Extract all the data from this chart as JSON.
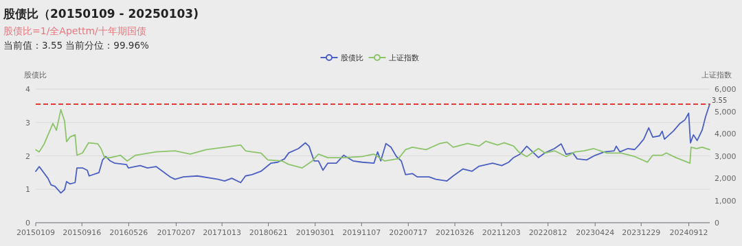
{
  "chart_data": {
    "type": "line",
    "title": "股债比（20150109 - 20250103)",
    "subtitle": "股债比=1/全Apettm/十年期国债",
    "annotations": [
      "当前值：3.55 当前分位：99.96%"
    ],
    "ylabel": "股债比",
    "y2label": "上证指数",
    "legend": "top",
    "grid": "y",
    "marker": "none",
    "line_style": "solid",
    "xlim": [
      "2015-01-09",
      "2025-01-03"
    ],
    "xticks": [
      {
        "value": "2015-01-09",
        "label": "20150109"
      },
      {
        "value": "2015-09-16",
        "label": "20150916"
      },
      {
        "value": "2016-05-26",
        "label": "20160526"
      },
      {
        "value": "2017-02-07",
        "label": "20170207"
      },
      {
        "value": "2017-10-13",
        "label": "20171013"
      },
      {
        "value": "2018-06-21",
        "label": "20180621"
      },
      {
        "value": "2019-03-01",
        "label": "20190301"
      },
      {
        "value": "2019-11-07",
        "label": "20191107"
      },
      {
        "value": "2020-07-17",
        "label": "20200717"
      },
      {
        "value": "2021-03-26",
        "label": "20210326"
      },
      {
        "value": "2021-12-03",
        "label": "20211203"
      },
      {
        "value": "2022-08-12",
        "label": "20220812"
      },
      {
        "value": "2023-04-24",
        "label": "20230424"
      },
      {
        "value": "2023-12-29",
        "label": "20231229"
      },
      {
        "value": "2024-09-12",
        "label": "20240912"
      }
    ],
    "ylim": [
      0,
      4
    ],
    "yticks": [
      0,
      1,
      2,
      3,
      4
    ],
    "y2lim": [
      0,
      6000
    ],
    "y2ticks": [
      0,
      {
        "value": 1000,
        "label": "1,000"
      },
      {
        "value": 2000,
        "label": "2,000"
      },
      {
        "value": 3000,
        "label": "3,000"
      },
      {
        "value": 4000,
        "label": "4,000"
      },
      {
        "value": 5000,
        "label": "5,000"
      },
      {
        "value": 6000,
        "label": "6,000"
      }
    ],
    "ref_lines": [
      {
        "axis": "y",
        "value": 3.55,
        "label": "3.55",
        "color": "#e53935",
        "line_style": "dashed"
      }
    ],
    "series": [
      {
        "name": "股债比",
        "color": "#4a5fc1",
        "x": [
          "2015-01-09",
          "2015-01-28",
          "2015-03-16",
          "2015-04-02",
          "2015-04-23",
          "2015-05-25",
          "2015-06-14",
          "2015-06-25",
          "2015-07-14",
          "2015-08-10",
          "2015-08-20",
          "2015-09-19",
          "2015-10-15",
          "2015-10-25",
          "2015-12-17",
          "2016-01-06",
          "2016-01-23",
          "2016-02-16",
          "2016-03-12",
          "2016-05-14",
          "2016-05-24",
          "2016-07-27",
          "2016-09-05",
          "2016-10-21",
          "2017-01-06",
          "2017-02-01",
          "2017-03-18",
          "2017-06-02",
          "2017-09-21",
          "2017-10-27",
          "2017-12-05",
          "2018-01-22",
          "2018-02-17",
          "2018-03-24",
          "2018-05-12",
          "2018-07-04",
          "2018-08-10",
          "2018-09-16",
          "2018-10-09",
          "2018-12-01",
          "2019-01-07",
          "2019-01-27",
          "2019-02-23",
          "2019-03-19",
          "2019-04-12",
          "2019-05-08",
          "2019-06-24",
          "2019-08-02",
          "2019-09-22",
          "2019-11-11",
          "2020-01-13",
          "2020-02-02",
          "2020-02-19",
          "2020-03-18",
          "2020-04-14",
          "2020-05-14",
          "2020-06-09",
          "2020-07-02",
          "2020-08-08",
          "2020-09-04",
          "2020-11-06",
          "2020-12-13",
          "2021-02-11",
          "2021-03-17",
          "2021-05-09",
          "2021-06-26",
          "2021-08-04",
          "2021-10-16",
          "2021-12-05",
          "2022-01-11",
          "2022-02-07",
          "2022-03-13",
          "2022-04-19",
          "2022-05-15",
          "2022-06-21",
          "2022-07-27",
          "2022-09-16",
          "2022-10-22",
          "2022-11-18",
          "2022-12-24",
          "2023-01-17",
          "2023-03-09",
          "2023-04-25",
          "2023-06-14",
          "2023-08-05",
          "2023-08-16",
          "2023-09-05",
          "2023-10-18",
          "2023-11-24",
          "2023-12-16",
          "2024-01-12",
          "2024-02-08",
          "2024-03-01",
          "2024-04-07",
          "2024-04-21",
          "2024-05-03",
          "2024-06-20",
          "2024-07-26",
          "2024-08-22",
          "2024-09-11",
          "2024-09-21",
          "2024-10-07",
          "2024-10-27",
          "2024-11-23",
          "2024-12-12",
          "2025-01-03"
        ],
        "values": [
          1.54,
          1.68,
          1.33,
          1.13,
          1.09,
          0.89,
          0.99,
          1.23,
          1.16,
          1.2,
          1.64,
          1.64,
          1.57,
          1.4,
          1.5,
          1.88,
          1.98,
          1.85,
          1.78,
          1.74,
          1.64,
          1.71,
          1.64,
          1.68,
          1.37,
          1.3,
          1.37,
          1.4,
          1.3,
          1.25,
          1.33,
          1.2,
          1.4,
          1.44,
          1.54,
          1.78,
          1.81,
          1.91,
          2.09,
          2.22,
          2.39,
          2.29,
          1.85,
          1.85,
          1.57,
          1.78,
          1.78,
          2.02,
          1.85,
          1.81,
          1.78,
          2.12,
          1.85,
          2.37,
          2.26,
          1.98,
          1.85,
          1.44,
          1.47,
          1.37,
          1.37,
          1.3,
          1.25,
          1.4,
          1.61,
          1.54,
          1.69,
          1.78,
          1.71,
          1.81,
          1.95,
          2.05,
          2.29,
          2.15,
          1.95,
          2.09,
          2.22,
          2.36,
          2.05,
          2.09,
          1.91,
          1.88,
          2.02,
          2.12,
          2.15,
          2.29,
          2.12,
          2.22,
          2.19,
          2.32,
          2.5,
          2.84,
          2.56,
          2.6,
          2.74,
          2.5,
          2.74,
          2.97,
          3.08,
          3.28,
          2.39,
          2.63,
          2.46,
          2.77,
          3.18,
          3.55
        ]
      },
      {
        "name": "上证指数",
        "color": "#8cc46a",
        "axis": "y2",
        "x": [
          "2015-01-09",
          "2015-01-28",
          "2015-02-24",
          "2015-04-12",
          "2015-05-01",
          "2015-05-25",
          "2015-06-14",
          "2015-06-25",
          "2015-07-14",
          "2015-08-10",
          "2015-08-20",
          "2015-09-19",
          "2015-10-22",
          "2015-12-11",
          "2015-12-28",
          "2016-01-17",
          "2016-02-16",
          "2016-04-11",
          "2016-05-18",
          "2016-07-02",
          "2016-10-21",
          "2017-02-01",
          "2017-04-24",
          "2017-07-19",
          "2017-10-27",
          "2018-01-22",
          "2018-02-17",
          "2018-03-24",
          "2018-05-12",
          "2018-06-18",
          "2018-09-03",
          "2018-10-09",
          "2018-12-21",
          "2019-02-13",
          "2019-03-19",
          "2019-05-08",
          "2019-08-02",
          "2019-11-11",
          "2020-01-13",
          "2020-03-11",
          "2020-05-24",
          "2020-07-02",
          "2020-08-08",
          "2020-10-21",
          "2021-01-05",
          "2021-02-11",
          "2021-03-17",
          "2021-06-02",
          "2021-08-04",
          "2021-09-10",
          "2021-11-12",
          "2021-12-18",
          "2022-02-07",
          "2022-03-06",
          "2022-04-19",
          "2022-06-21",
          "2022-07-27",
          "2022-09-16",
          "2022-11-18",
          "2023-01-06",
          "2023-02-23",
          "2023-04-15",
          "2023-06-27",
          "2023-09-12",
          "2023-11-24",
          "2024-02-01",
          "2024-03-01",
          "2024-04-21",
          "2024-05-13",
          "2024-07-05",
          "2024-09-04",
          "2024-09-18",
          "2024-09-24",
          "2024-10-24",
          "2024-11-23",
          "2025-01-03"
        ],
        "values": [
          3280,
          3180,
          3540,
          4460,
          4150,
          5080,
          4560,
          3640,
          3850,
          3950,
          3030,
          3130,
          3590,
          3540,
          3330,
          2920,
          2920,
          3030,
          2770,
          3030,
          3180,
          3230,
          3080,
          3280,
          3390,
          3490,
          3230,
          3180,
          3130,
          2820,
          2770,
          2620,
          2460,
          2770,
          3080,
          2920,
          2920,
          2970,
          3080,
          2770,
          2870,
          3280,
          3390,
          3280,
          3560,
          3620,
          3390,
          3560,
          3440,
          3660,
          3490,
          3590,
          3440,
          3180,
          2970,
          3330,
          3130,
          3230,
          2970,
          3180,
          3230,
          3330,
          3130,
          3130,
          2970,
          2720,
          3030,
          3030,
          3130,
          2920,
          2720,
          2670,
          3390,
          3330,
          3390,
          3280
        ]
      }
    ]
  }
}
